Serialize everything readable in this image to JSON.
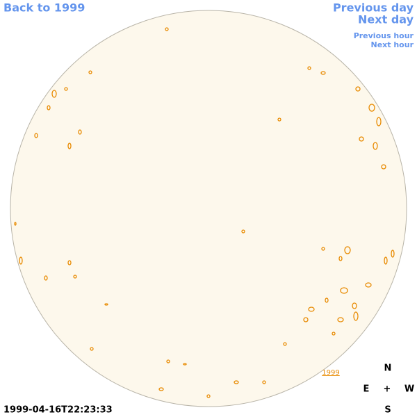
{
  "nav": {
    "back": "Back to 1999",
    "previous_day": "Previous day",
    "next_day": "Next day",
    "previous_hour": "Previous hour",
    "next_hour": "Next hour"
  },
  "disk": {
    "year_link": "1999"
  },
  "compass": {
    "north": "N",
    "east": "E",
    "center": "+",
    "west": "W",
    "south": "S"
  },
  "timestamp": "1999-04-16T22:23:33"
}
